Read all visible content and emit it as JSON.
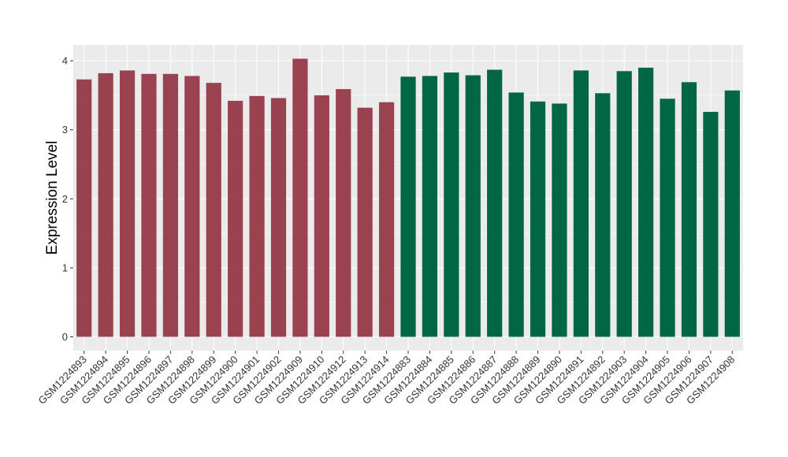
{
  "chart_data": {
    "type": "bar",
    "title": "",
    "xlabel": "",
    "ylabel": "Expression Level",
    "ylim": [
      -0.2,
      4.23
    ],
    "yticks": [
      0,
      1,
      2,
      3,
      4
    ],
    "grid": true,
    "legend": "none",
    "colors": {
      "group1": "#9B4250",
      "group2": "#006644",
      "panel": "#EBEBEB",
      "grid": "#FFFFFF"
    },
    "categories": [
      "GSM1224893",
      "GSM1224894",
      "GSM1224895",
      "GSM1224896",
      "GSM1224897",
      "GSM1224898",
      "GSM1224899",
      "GSM1224900",
      "GSM1224901",
      "GSM1224902",
      "GSM1224909",
      "GSM1224910",
      "GSM1224912",
      "GSM1224913",
      "GSM1224914",
      "GSM1224883",
      "GSM1224884",
      "GSM1224885",
      "GSM1224886",
      "GSM1224887",
      "GSM1224888",
      "GSM1224889",
      "GSM1224890",
      "GSM1224891",
      "GSM1224892",
      "GSM1224903",
      "GSM1224904",
      "GSM1224905",
      "GSM1224906",
      "GSM1224907",
      "GSM1224908"
    ],
    "values": [
      3.73,
      3.82,
      3.86,
      3.81,
      3.81,
      3.78,
      3.68,
      3.42,
      3.49,
      3.46,
      4.03,
      3.5,
      3.59,
      3.32,
      3.4,
      3.77,
      3.78,
      3.83,
      3.79,
      3.87,
      3.54,
      3.41,
      3.38,
      3.86,
      3.53,
      3.85,
      3.9,
      3.45,
      3.69,
      3.26,
      3.57
    ],
    "groups": [
      "group1",
      "group1",
      "group1",
      "group1",
      "group1",
      "group1",
      "group1",
      "group1",
      "group1",
      "group1",
      "group1",
      "group1",
      "group1",
      "group1",
      "group1",
      "group2",
      "group2",
      "group2",
      "group2",
      "group2",
      "group2",
      "group2",
      "group2",
      "group2",
      "group2",
      "group2",
      "group2",
      "group2",
      "group2",
      "group2",
      "group2"
    ]
  }
}
